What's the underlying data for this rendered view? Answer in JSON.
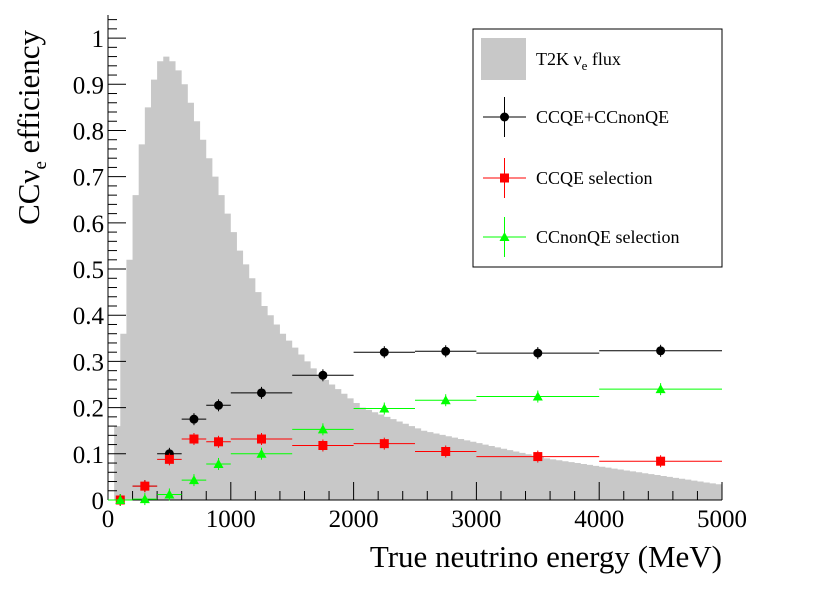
{
  "chart_data": {
    "type": "scatter",
    "xlabel": "True neutrino energy (MeV)",
    "ylabel": "CCν_e efficiency",
    "xlim": [
      0,
      5000
    ],
    "ylim": [
      0,
      1.05
    ],
    "x_ticks": [
      0,
      1000,
      2000,
      3000,
      4000,
      5000
    ],
    "y_ticks": [
      0,
      0.1,
      0.2,
      0.3,
      0.4,
      0.5,
      0.6,
      0.7,
      0.8,
      0.9,
      1
    ],
    "grid": false,
    "legend_position": "top-right",
    "flux": {
      "name": "T2K ν_e flux",
      "color": "#c8c8c8",
      "bin_width": 50,
      "bin_start": 50,
      "values": [
        0.16,
        0.36,
        0.52,
        0.66,
        0.77,
        0.85,
        0.91,
        0.95,
        0.96,
        0.95,
        0.93,
        0.9,
        0.86,
        0.82,
        0.78,
        0.74,
        0.7,
        0.66,
        0.62,
        0.58,
        0.54,
        0.51,
        0.48,
        0.45,
        0.42,
        0.4,
        0.38,
        0.36,
        0.345,
        0.33,
        0.315,
        0.3,
        0.285,
        0.27,
        0.26,
        0.25,
        0.24,
        0.23,
        0.22,
        0.21,
        0.2,
        0.195,
        0.19,
        0.185,
        0.18,
        0.175,
        0.17,
        0.165,
        0.16,
        0.155,
        0.15,
        0.147,
        0.144,
        0.141,
        0.138,
        0.135,
        0.132,
        0.129,
        0.126,
        0.123,
        0.12,
        0.117,
        0.114,
        0.111,
        0.108,
        0.105,
        0.102,
        0.099,
        0.096,
        0.093,
        0.09,
        0.088,
        0.086,
        0.084,
        0.082,
        0.08,
        0.078,
        0.076,
        0.074,
        0.072,
        0.07,
        0.068,
        0.066,
        0.064,
        0.062,
        0.06,
        0.058,
        0.056,
        0.054,
        0.052,
        0.05,
        0.048,
        0.046,
        0.044,
        0.042,
        0.04,
        0.038,
        0.036,
        0.034,
        0.032
      ]
    },
    "series": [
      {
        "name": "CCQE+CCnonQE",
        "color": "#000000",
        "marker": "circle",
        "points": [
          {
            "x": 100,
            "xlo": 0,
            "xhi": 200,
            "y": 0.0
          },
          {
            "x": 300,
            "xlo": 200,
            "xhi": 400,
            "y": 0.03
          },
          {
            "x": 500,
            "xlo": 400,
            "xhi": 600,
            "y": 0.1
          },
          {
            "x": 700,
            "xlo": 600,
            "xhi": 800,
            "y": 0.175
          },
          {
            "x": 900,
            "xlo": 800,
            "xhi": 1000,
            "y": 0.205
          },
          {
            "x": 1250,
            "xlo": 1000,
            "xhi": 1500,
            "y": 0.232
          },
          {
            "x": 1750,
            "xlo": 1500,
            "xhi": 2000,
            "y": 0.27
          },
          {
            "x": 2250,
            "xlo": 2000,
            "xhi": 2500,
            "y": 0.32
          },
          {
            "x": 2750,
            "xlo": 2500,
            "xhi": 3000,
            "y": 0.322
          },
          {
            "x": 3500,
            "xlo": 3000,
            "xhi": 4000,
            "y": 0.318
          },
          {
            "x": 4500,
            "xlo": 4000,
            "xhi": 5000,
            "y": 0.323
          }
        ]
      },
      {
        "name": "CCQE selection",
        "color": "#ff0000",
        "marker": "square",
        "points": [
          {
            "x": 100,
            "xlo": 0,
            "xhi": 200,
            "y": 0.0
          },
          {
            "x": 300,
            "xlo": 200,
            "xhi": 400,
            "y": 0.03
          },
          {
            "x": 500,
            "xlo": 400,
            "xhi": 600,
            "y": 0.088
          },
          {
            "x": 700,
            "xlo": 600,
            "xhi": 800,
            "y": 0.132
          },
          {
            "x": 900,
            "xlo": 800,
            "xhi": 1000,
            "y": 0.126
          },
          {
            "x": 1250,
            "xlo": 1000,
            "xhi": 1500,
            "y": 0.132
          },
          {
            "x": 1750,
            "xlo": 1500,
            "xhi": 2000,
            "y": 0.118
          },
          {
            "x": 2250,
            "xlo": 2000,
            "xhi": 2500,
            "y": 0.122
          },
          {
            "x": 2750,
            "xlo": 2500,
            "xhi": 3000,
            "y": 0.105
          },
          {
            "x": 3500,
            "xlo": 3000,
            "xhi": 4000,
            "y": 0.094
          },
          {
            "x": 4500,
            "xlo": 4000,
            "xhi": 5000,
            "y": 0.084
          }
        ]
      },
      {
        "name": "CCnonQE selection",
        "color": "#00ff00",
        "marker": "triangle",
        "points": [
          {
            "x": 100,
            "xlo": 0,
            "xhi": 200,
            "y": 0.0
          },
          {
            "x": 300,
            "xlo": 200,
            "xhi": 400,
            "y": 0.002
          },
          {
            "x": 500,
            "xlo": 400,
            "xhi": 600,
            "y": 0.012
          },
          {
            "x": 700,
            "xlo": 600,
            "xhi": 800,
            "y": 0.043
          },
          {
            "x": 900,
            "xlo": 800,
            "xhi": 1000,
            "y": 0.078
          },
          {
            "x": 1250,
            "xlo": 1000,
            "xhi": 1500,
            "y": 0.1
          },
          {
            "x": 1750,
            "xlo": 1500,
            "xhi": 2000,
            "y": 0.153
          },
          {
            "x": 2250,
            "xlo": 2000,
            "xhi": 2500,
            "y": 0.198
          },
          {
            "x": 2750,
            "xlo": 2500,
            "xhi": 3000,
            "y": 0.216
          },
          {
            "x": 3500,
            "xlo": 3000,
            "xhi": 4000,
            "y": 0.224
          },
          {
            "x": 4500,
            "xlo": 4000,
            "xhi": 5000,
            "y": 0.24
          }
        ]
      }
    ]
  }
}
